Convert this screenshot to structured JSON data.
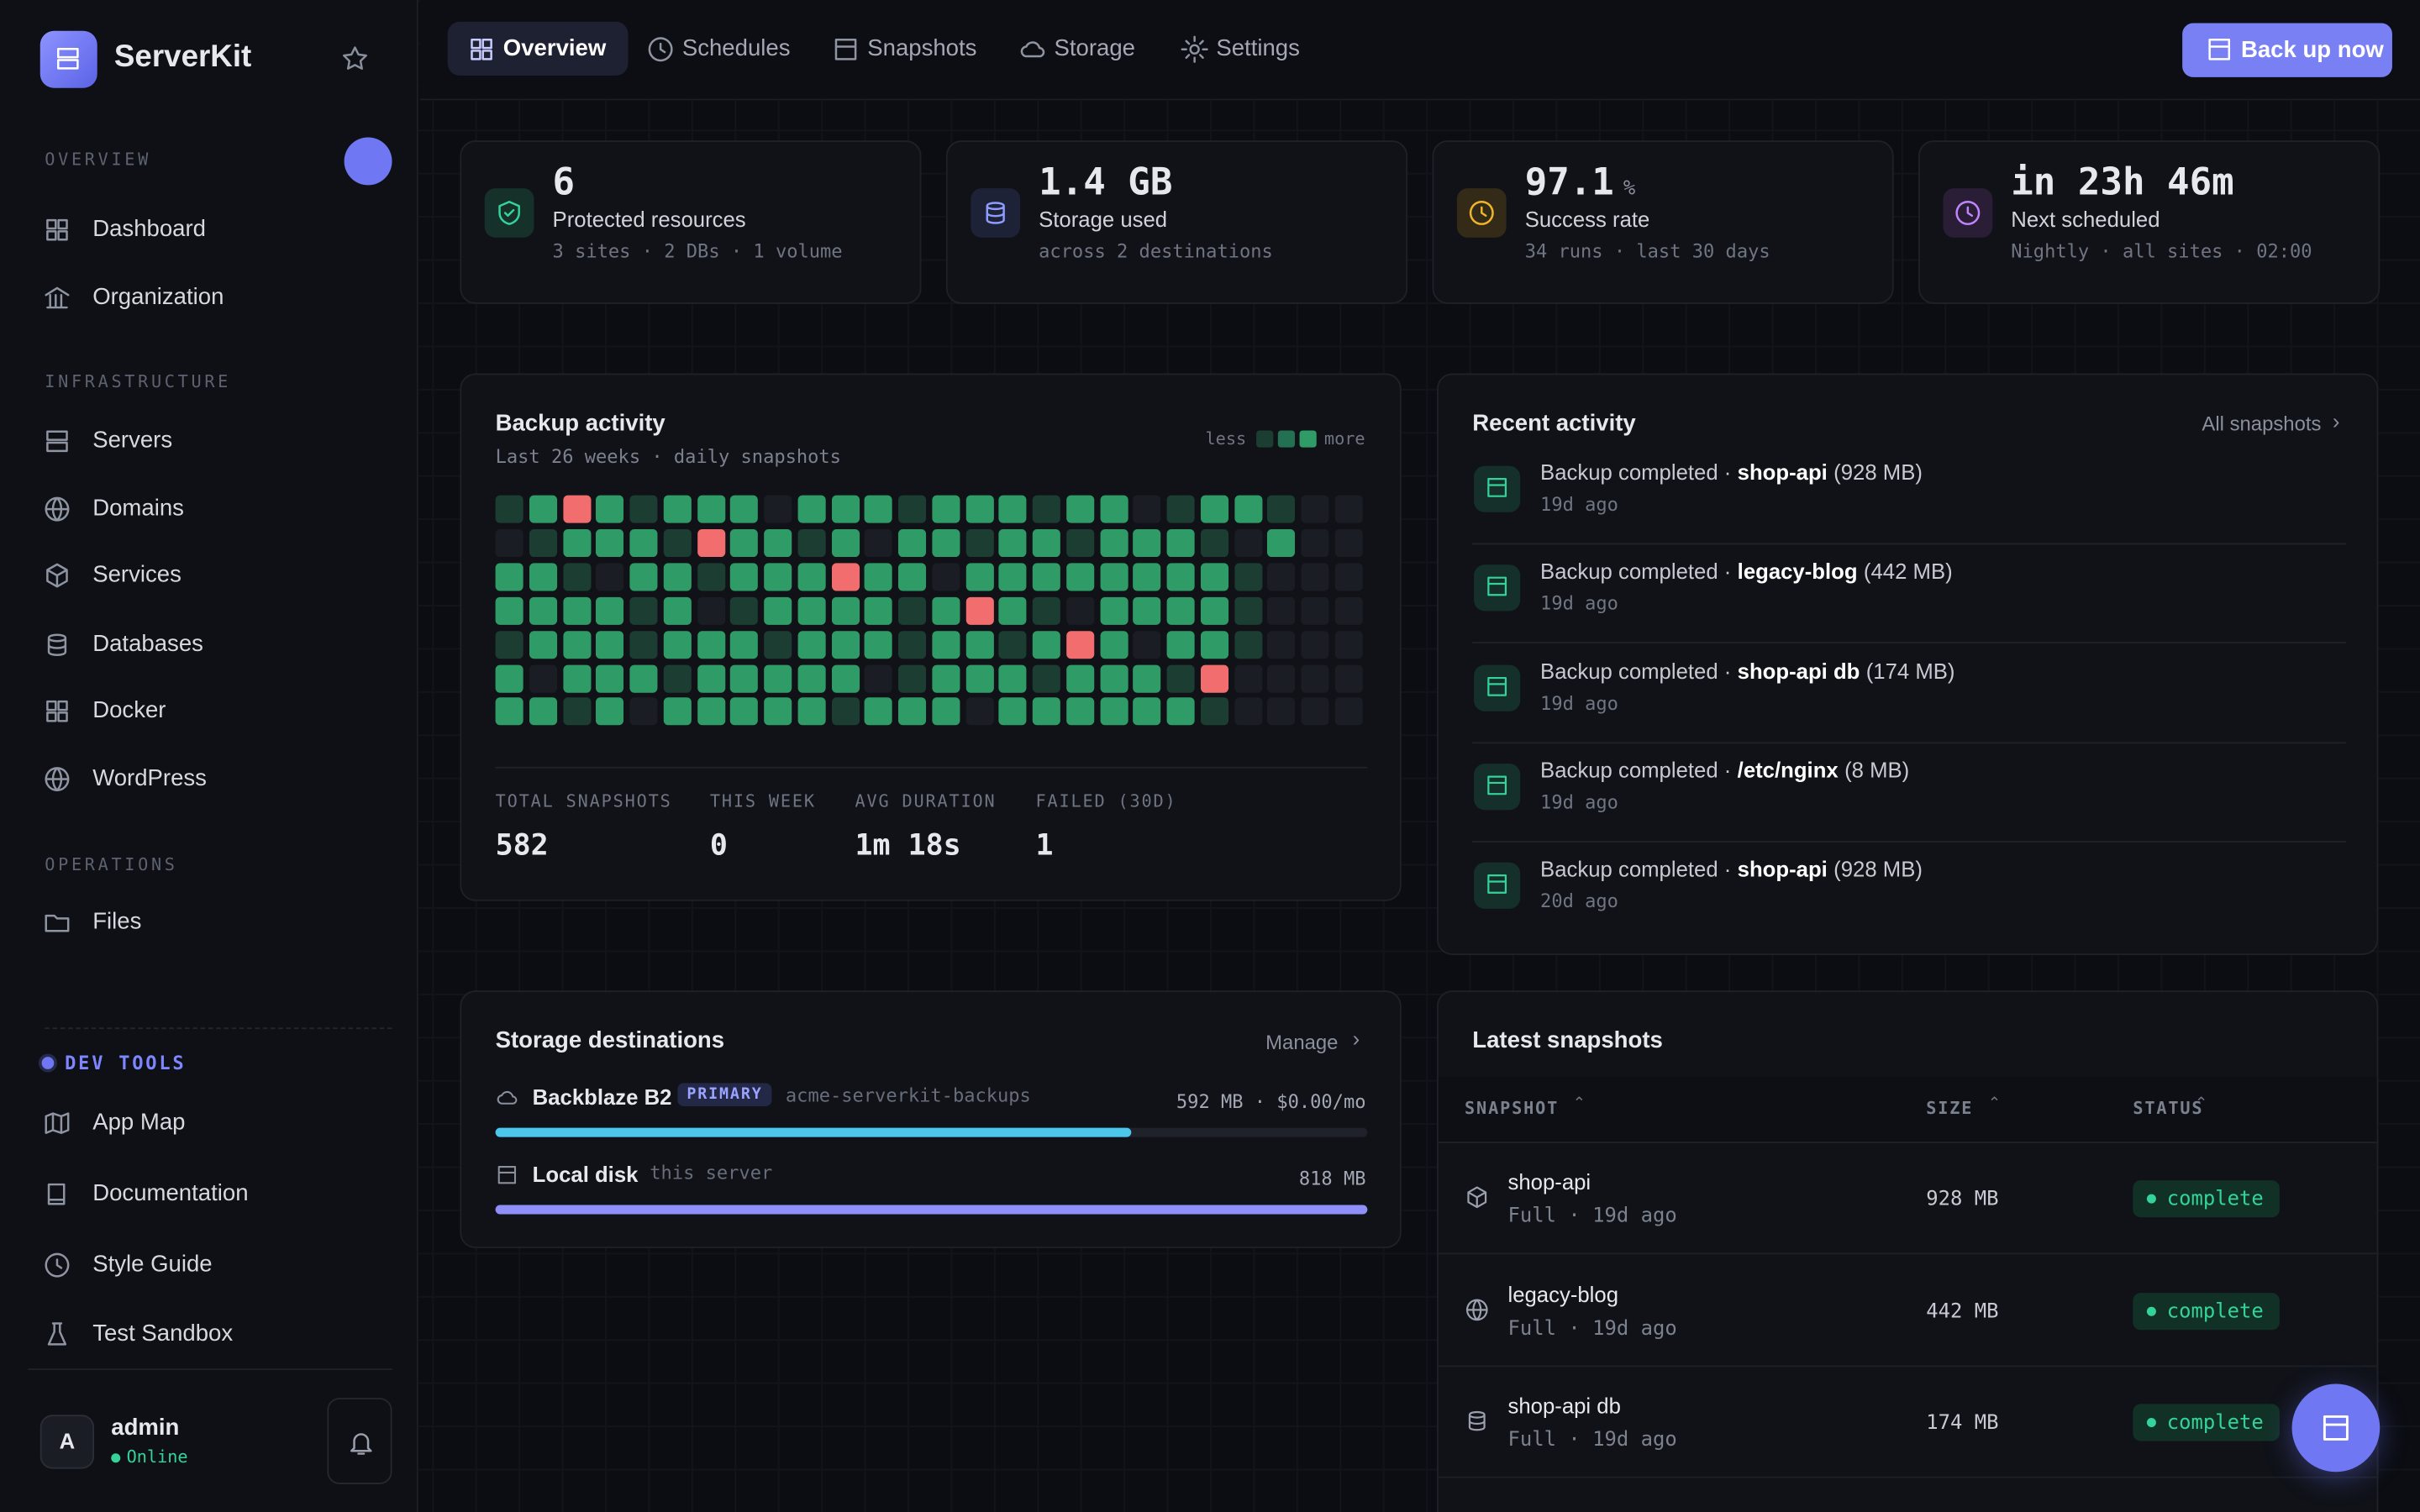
{
  "sidebar": {
    "brand": "ServerKit",
    "sections": [
      {
        "title": "OVERVIEW",
        "items": [
          "Dashboard",
          "Organization"
        ]
      },
      {
        "title": "INFRASTRUCTURE",
        "items": [
          "Servers",
          "Domains",
          "Services",
          "Databases",
          "Docker",
          "WordPress"
        ]
      },
      {
        "title": "OPERATIONS",
        "items": [
          "Files"
        ]
      }
    ],
    "dev_tools": {
      "title": "DEV TOOLS",
      "items": [
        "App Map",
        "Documentation",
        "Style Guide",
        "Test Sandbox"
      ]
    },
    "user": {
      "avatar": "A",
      "name": "admin",
      "status": "Online"
    }
  },
  "tabs": [
    "Overview",
    "Schedules",
    "Snapshots",
    "Storage",
    "Settings"
  ],
  "backup_button": "Back up now",
  "stats": [
    {
      "value": "6",
      "label": "Protected resources",
      "detail": "3 sites · 2 DBs · 1 volume"
    },
    {
      "value": "1.4 GB",
      "label": "Storage used",
      "detail": "across 2 destinations"
    },
    {
      "value": "97.1",
      "unit": "%",
      "label": "Success rate",
      "detail": "34 runs · last 30 days"
    },
    {
      "value": "in 23h 46m",
      "label": "Next scheduled",
      "detail": "Nightly · all sites · 02:00"
    }
  ],
  "activity": {
    "title": "Backup activity",
    "subtitle": "Last 26 weeks · daily snapshots",
    "legend_less": "less",
    "legend_more": "more",
    "level_colors": {
      "-1": "#f26d6d",
      "0": "#1a1d24",
      "1": "#1c3d31",
      "2": "#237052",
      "3": "#2f9c68"
    },
    "heatmap": [
      [
        1,
        3,
        -1,
        3,
        1,
        3,
        3,
        3,
        0,
        3,
        3,
        3,
        1,
        3,
        3,
        3,
        1,
        3,
        3,
        0,
        1,
        3,
        3,
        1,
        0,
        0
      ],
      [
        0,
        1,
        3,
        3,
        3,
        1,
        -1,
        3,
        3,
        1,
        3,
        0,
        3,
        3,
        1,
        3,
        3,
        1,
        3,
        3,
        3,
        1,
        0,
        3,
        0,
        0
      ],
      [
        3,
        3,
        1,
        0,
        3,
        3,
        1,
        3,
        3,
        3,
        -1,
        3,
        3,
        0,
        3,
        3,
        3,
        3,
        3,
        3,
        3,
        3,
        1,
        0,
        0,
        0
      ],
      [
        3,
        3,
        3,
        3,
        1,
        3,
        0,
        1,
        3,
        3,
        3,
        3,
        1,
        3,
        -1,
        3,
        1,
        0,
        3,
        3,
        3,
        3,
        1,
        0,
        0,
        0
      ],
      [
        1,
        3,
        3,
        3,
        1,
        3,
        3,
        3,
        1,
        3,
        3,
        3,
        1,
        3,
        3,
        1,
        3,
        -1,
        3,
        0,
        3,
        3,
        1,
        0,
        0,
        0
      ],
      [
        3,
        0,
        3,
        3,
        3,
        1,
        3,
        3,
        3,
        3,
        3,
        0,
        1,
        3,
        3,
        3,
        1,
        3,
        3,
        3,
        1,
        -1,
        0,
        0,
        0,
        0
      ],
      [
        3,
        3,
        1,
        3,
        0,
        3,
        3,
        3,
        3,
        3,
        1,
        3,
        3,
        3,
        0,
        3,
        3,
        3,
        3,
        3,
        3,
        1,
        0,
        0,
        0,
        0
      ]
    ],
    "totals": [
      {
        "label": "TOTAL SNAPSHOTS",
        "value": 582
      },
      {
        "label": "THIS WEEK",
        "value": 0
      },
      {
        "label": "AVG DURATION",
        "value": "1m 18s"
      },
      {
        "label": "FAILED (30D)",
        "value": 1
      }
    ]
  },
  "recent": {
    "title": "Recent activity",
    "link": "All snapshots",
    "items": [
      {
        "action": "Backup completed ·",
        "name": "shop-api",
        "size": "(928 MB)",
        "time": "19d ago"
      },
      {
        "action": "Backup completed ·",
        "name": "legacy-blog",
        "size": "(442 MB)",
        "time": "19d ago"
      },
      {
        "action": "Backup completed ·",
        "name": "shop-api db",
        "size": "(174 MB)",
        "time": "19d ago"
      },
      {
        "action": "Backup completed ·",
        "name": "/etc/nginx",
        "size": "(8 MB)",
        "time": "19d ago"
      },
      {
        "action": "Backup completed ·",
        "name": "shop-api",
        "size": "(928 MB)",
        "time": "20d ago"
      }
    ]
  },
  "storage": {
    "title": "Storage destinations",
    "link": "Manage",
    "destinations": [
      {
        "name": "Backblaze B2",
        "badge": "PRIMARY",
        "detail": "acme-serverkit-backups",
        "usage": "592 MB · $0.00/mo",
        "fill": 73,
        "color": "#4cc6ea"
      },
      {
        "name": "Local disk",
        "detail": "this server",
        "usage": "818 MB",
        "fill": 100,
        "color": "#8f90f7"
      }
    ]
  },
  "snapshots": {
    "title": "Latest snapshots",
    "headers": [
      "SNAPSHOT",
      "SIZE",
      "STATUS"
    ],
    "rows": [
      {
        "name": "shop-api",
        "meta": "Full · 19d ago",
        "size": "928 MB",
        "status": "complete"
      },
      {
        "name": "legacy-blog",
        "meta": "Full · 19d ago",
        "size": "442 MB",
        "status": "complete"
      },
      {
        "name": "shop-api db",
        "meta": "Full · 19d ago",
        "size": "174 MB",
        "status": "complete"
      }
    ]
  }
}
